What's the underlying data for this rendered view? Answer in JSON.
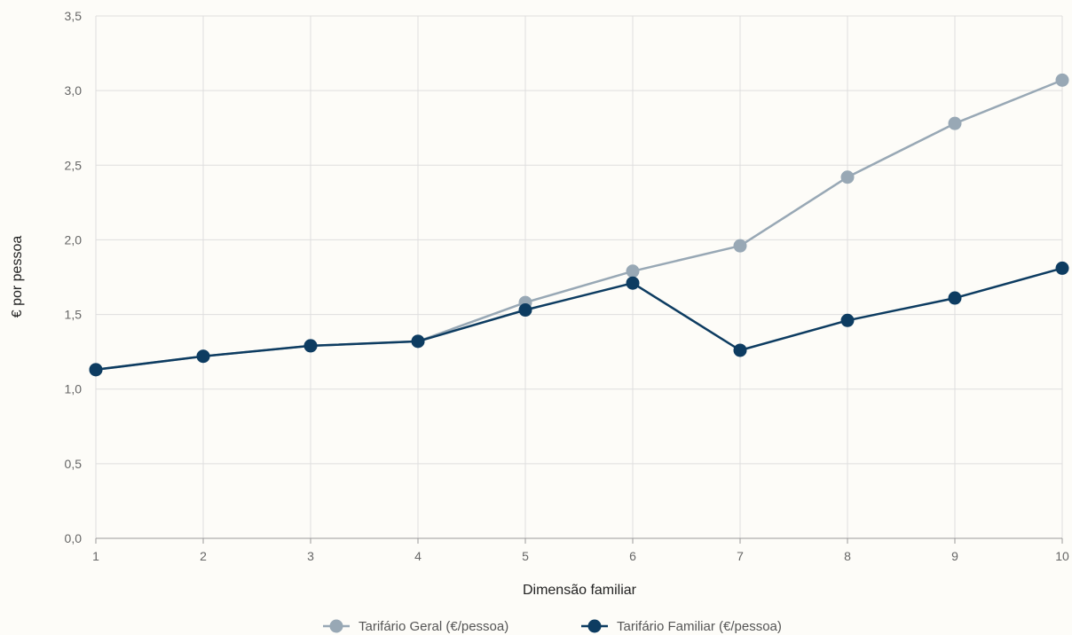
{
  "chart_data": {
    "type": "line",
    "xlabel": "Dimensão familiar",
    "ylabel": "€ por pessoa",
    "x": [
      1,
      2,
      3,
      4,
      5,
      6,
      7,
      8,
      9,
      10
    ],
    "x_tick_labels": [
      "1",
      "2",
      "3",
      "4",
      "5",
      "6",
      "7",
      "8",
      "9",
      "10"
    ],
    "ylim": [
      0,
      3.5
    ],
    "y_ticks": [
      0,
      0.5,
      1.0,
      1.5,
      2.0,
      2.5,
      3.0,
      3.5
    ],
    "y_tick_labels": [
      "0,0",
      "0,5",
      "1,0",
      "1,5",
      "2,0",
      "2,5",
      "3,0",
      "3,5"
    ],
    "grid": true,
    "legend_position": "bottom",
    "series": [
      {
        "name": "Tarifário Geral (€/pessoa)",
        "color": "#98a8b5",
        "values": [
          1.13,
          1.22,
          1.29,
          1.32,
          1.58,
          1.79,
          1.96,
          2.42,
          2.78,
          3.07
        ]
      },
      {
        "name": "Tarifário Familiar (€/pessoa)",
        "color": "#0d3c61",
        "values": [
          1.13,
          1.22,
          1.29,
          1.32,
          1.53,
          1.71,
          1.26,
          1.46,
          1.61,
          1.81
        ]
      }
    ]
  }
}
